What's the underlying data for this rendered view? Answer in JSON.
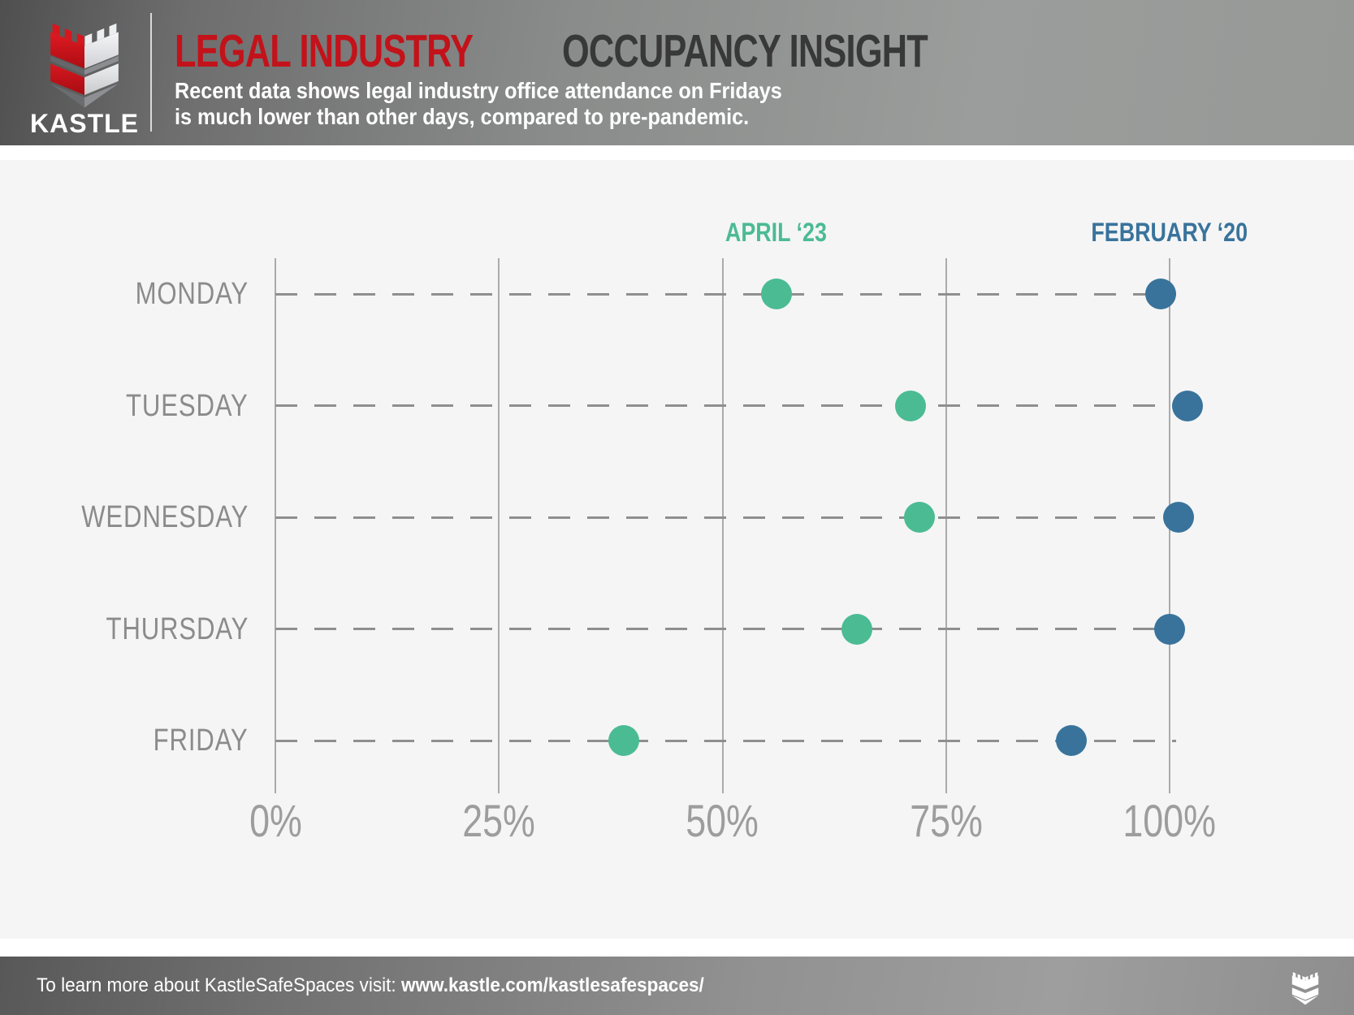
{
  "header": {
    "logo_text": "KASTLE",
    "title": {
      "highlight": "LEGAL INDUSTRY",
      "rest": "OCCUPANCY INSIGHT"
    },
    "subtitle_line1": "Recent data shows legal industry office attendance on Fridays",
    "subtitle_line2": "is much lower than other days, compared to pre-pandemic.",
    "accent_red": "#c3121a",
    "title_dark": "#383838"
  },
  "chart_data": {
    "type": "scatter",
    "subtype": "horizontal-dot-plot",
    "title": "Legal industry office occupancy by weekday, April 2023 vs February 2020",
    "categories": [
      "MONDAY",
      "TUESDAY",
      "WEDNESDAY",
      "THURSDAY",
      "FRIDAY"
    ],
    "series": [
      {
        "name": "APRIL ‘23",
        "color": "#4bbb93",
        "values": [
          56,
          71,
          72,
          65,
          39
        ],
        "legend_center_pct": 56
      },
      {
        "name": "FEBRUARY ‘20",
        "color": "#39739b",
        "values": [
          99,
          102,
          101,
          100,
          89
        ],
        "legend_center_pct": 100
      }
    ],
    "x_ticks": [
      0,
      25,
      50,
      75,
      100
    ],
    "x_tick_labels": [
      "0%",
      "25%",
      "50%",
      "75%",
      "100%"
    ],
    "xlim": [
      0,
      104
    ],
    "unit": "percent of pre-pandemic occupancy",
    "grid": {
      "vertical": "solid",
      "horizontal": "dashed"
    },
    "legend_position": "above-plot",
    "colors": {
      "gridline": "#ababab",
      "dash": "#8f8f8f",
      "day_label": "#8b8b8b",
      "tick_label": "#9d9d9d",
      "plot_background": "#f5f5f6"
    }
  },
  "footer": {
    "link_prefix": "To learn more about KastleSafeSpaces visit: ",
    "link_url": "www.kastle.com/kastlesafespaces/"
  }
}
